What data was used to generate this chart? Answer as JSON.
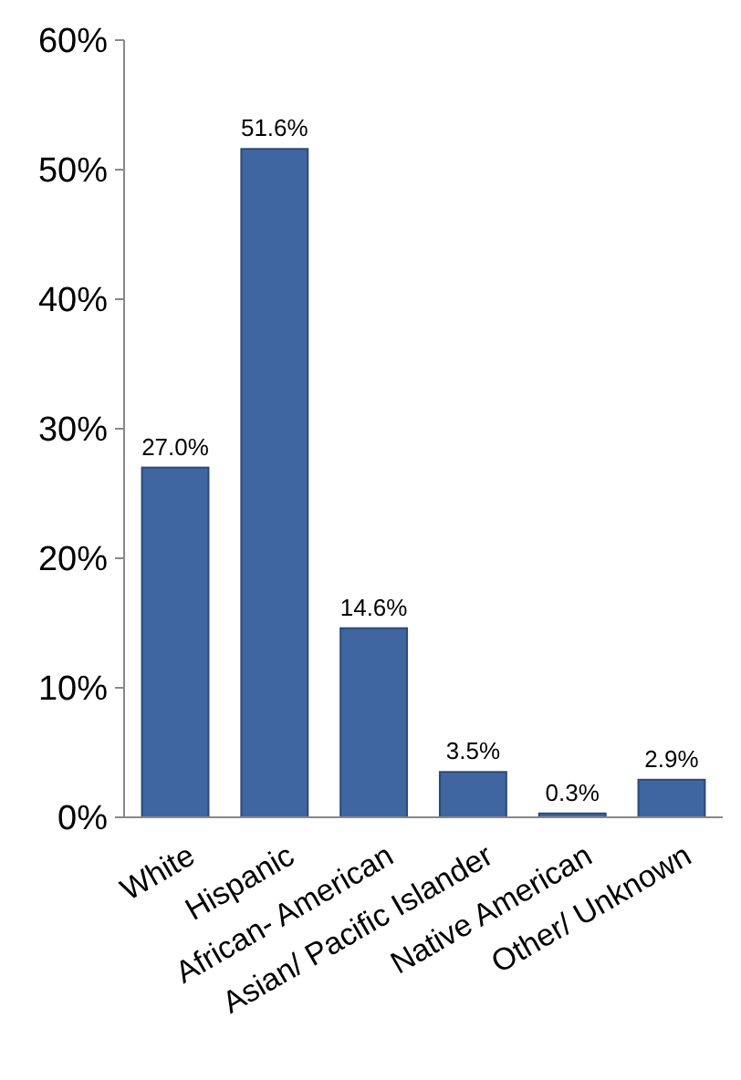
{
  "chart_data": {
    "type": "bar",
    "categories": [
      "White",
      "Hispanic",
      "African- American",
      "Asian/ Pacific Islander",
      "Native American",
      "Other/ Unknown"
    ],
    "values": [
      27.0,
      51.6,
      14.6,
      3.5,
      0.3,
      2.9
    ],
    "value_labels": [
      "27.0%",
      "51.6%",
      "14.6%",
      "3.5%",
      "0.3%",
      "2.9%"
    ],
    "color": "#3f66a0",
    "ylim": [
      0,
      60
    ],
    "yticks": [
      {
        "value": 0,
        "label": "0%"
      },
      {
        "value": 10,
        "label": "10%"
      },
      {
        "value": 20,
        "label": "20%"
      },
      {
        "value": 30,
        "label": "30%"
      },
      {
        "value": 40,
        "label": "40%"
      },
      {
        "value": 50,
        "label": "50%"
      },
      {
        "value": 60,
        "label": "60%"
      }
    ],
    "grid": false
  }
}
